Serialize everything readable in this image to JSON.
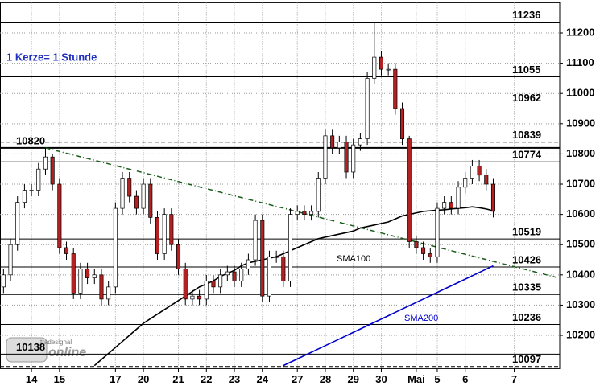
{
  "chart_data": {
    "type": "candlestick",
    "annotation": "1 Kerze= 1 Stunde",
    "logo": [
      "tradesignal",
      "online"
    ],
    "xlim": [
      -0.5,
      79.5
    ],
    "ylim": [
      10090,
      11300
    ],
    "grid": true,
    "up_color": "#ffffff",
    "down_color": "#b22222",
    "xticks": [
      {
        "value": 4,
        "label": "14"
      },
      {
        "value": 8,
        "label": "15"
      },
      {
        "value": 16,
        "label": "17"
      },
      {
        "value": 20,
        "label": "20"
      },
      {
        "value": 25,
        "label": "21"
      },
      {
        "value": 29,
        "label": "22"
      },
      {
        "value": 33,
        "label": "23"
      },
      {
        "value": 37,
        "label": "24"
      },
      {
        "value": 42,
        "label": "27"
      },
      {
        "value": 46,
        "label": "28"
      },
      {
        "value": 50,
        "label": "29"
      },
      {
        "value": 54,
        "label": "30"
      },
      {
        "value": 59,
        "label": "Mai"
      },
      {
        "value": 62,
        "label": "5"
      },
      {
        "value": 66,
        "label": "6"
      },
      {
        "value": 73,
        "label": "7"
      }
    ],
    "yticks": [
      10200,
      10300,
      10400,
      10500,
      10600,
      10700,
      10800,
      10900,
      11000,
      11100,
      11200
    ],
    "open": [
      10360,
      10400,
      10500,
      10640,
      10680,
      10680,
      10750,
      10790,
      10700,
      10490,
      10470,
      10340,
      10420,
      10390,
      10400,
      10320,
      10360,
      10620,
      10720,
      10660,
      10620,
      10700,
      10590,
      10470,
      10600,
      10500,
      10420,
      10320,
      10330,
      10320,
      10380,
      10360,
      10400,
      10410,
      10380,
      10420,
      10450,
      10580,
      10330,
      10460,
      10460,
      10380,
      10600,
      10610,
      10600,
      10610,
      10720,
      10860,
      10820,
      10840,
      10740,
      10830,
      10850,
      11050,
      11120,
      11080,
      11080,
      10950,
      10850,
      10510,
      10490,
      10470,
      10460,
      10620,
      10640,
      10620,
      10690,
      10720,
      10760,
      10730,
      10700
    ],
    "high": [
      10420,
      10520,
      10660,
      10700,
      10700,
      10770,
      10820,
      10800,
      10720,
      10510,
      10490,
      10440,
      10440,
      10420,
      10420,
      10380,
      10640,
      10740,
      10740,
      10680,
      10720,
      10720,
      10610,
      10620,
      10620,
      10520,
      10440,
      10350,
      10350,
      10400,
      10400,
      10420,
      10430,
      10430,
      10440,
      10470,
      10600,
      10600,
      10480,
      10480,
      10480,
      10620,
      10630,
      10630,
      10630,
      10740,
      10880,
      10880,
      10860,
      10860,
      10850,
      10870,
      11070,
      11236,
      11140,
      11100,
      11100,
      10970,
      10860,
      10530,
      10510,
      10490,
      10640,
      10660,
      10660,
      10710,
      10740,
      10780,
      10780,
      10750,
      10720
    ],
    "low": [
      10340,
      10380,
      10480,
      10620,
      10660,
      10660,
      10730,
      10680,
      10470,
      10450,
      10320,
      10320,
      10370,
      10370,
      10300,
      10300,
      10340,
      10600,
      10640,
      10600,
      10600,
      10570,
      10450,
      10450,
      10480,
      10400,
      10300,
      10300,
      10300,
      10300,
      10340,
      10340,
      10380,
      10360,
      10360,
      10400,
      10430,
      10310,
      10310,
      10440,
      10360,
      10360,
      10580,
      10580,
      10580,
      10590,
      10700,
      10800,
      10800,
      10720,
      10720,
      10810,
      10830,
      11030,
      11060,
      11060,
      10930,
      10830,
      10490,
      10470,
      10450,
      10440,
      10440,
      10600,
      10600,
      10600,
      10670,
      10700,
      10710,
      10680,
      10590
    ],
    "close": [
      10400,
      10500,
      10640,
      10680,
      10680,
      10750,
      10790,
      10700,
      10490,
      10470,
      10340,
      10420,
      10390,
      10400,
      10320,
      10360,
      10620,
      10720,
      10660,
      10620,
      10700,
      10590,
      10470,
      10600,
      10500,
      10420,
      10320,
      10330,
      10320,
      10380,
      10360,
      10400,
      10410,
      10380,
      10420,
      10450,
      10580,
      10330,
      10460,
      10460,
      10380,
      10600,
      10610,
      10600,
      10610,
      10720,
      10860,
      10820,
      10840,
      10740,
      10830,
      10850,
      11050,
      11120,
      11080,
      11080,
      10950,
      10850,
      10510,
      10490,
      10470,
      10460,
      10620,
      10640,
      10620,
      10690,
      10720,
      10760,
      10730,
      10700,
      10610
    ],
    "lines": [
      {
        "name": "SMA100",
        "color": "#000000",
        "values": [
          null,
          null,
          null,
          null,
          null,
          null,
          null,
          null,
          null,
          null,
          null,
          null,
          null,
          10100,
          10120,
          10140,
          10160,
          10180,
          10200,
          10220,
          10240,
          10255,
          10270,
          10285,
          10300,
          10315,
          10330,
          10345,
          10360,
          10370,
          10380,
          10395,
          10405,
          10415,
          10430,
          10440,
          10445,
          10450,
          10455,
          10460,
          10470,
          10480,
          10490,
          10500,
          10510,
          10520,
          10525,
          10530,
          10535,
          10540,
          10545,
          10555,
          10560,
          10565,
          10570,
          10575,
          10585,
          10595,
          10600,
          10605,
          10610,
          10612,
          10614,
          10615,
          10618,
          10620,
          10622,
          10625,
          10622,
          10618,
          10612
        ]
      },
      {
        "name": "SMA200",
        "color": "#0000cc",
        "values": [
          null,
          null,
          null,
          null,
          null,
          null,
          null,
          null,
          null,
          null,
          null,
          null,
          null,
          null,
          null,
          null,
          null,
          null,
          null,
          null,
          null,
          null,
          null,
          null,
          null,
          null,
          null,
          null,
          null,
          null,
          null,
          null,
          null,
          null,
          null,
          null,
          null,
          null,
          null,
          null,
          10100,
          10111,
          10122,
          10133,
          10144,
          10155,
          10166,
          10177,
          10188,
          10199,
          10210,
          10221,
          10232,
          10243,
          10254,
          10265,
          10276,
          10287,
          10298,
          10309,
          10320,
          10331,
          10342,
          10353,
          10364,
          10375,
          10386,
          10397,
          10408,
          10419,
          10430
        ]
      }
    ],
    "trendline": {
      "color": "#1a5c1a",
      "x": [
        6,
        79
      ],
      "values": [
        10820,
        10392
      ]
    },
    "levels": [
      {
        "value": 11236,
        "style": "solid",
        "label_side": "right"
      },
      {
        "value": 11055,
        "style": "solid",
        "label_side": "right"
      },
      {
        "value": 10962,
        "style": "solid",
        "label_side": "right"
      },
      {
        "value": 10839,
        "style": "dashed",
        "label_side": "right"
      },
      {
        "value": 10820,
        "style": "thick",
        "label_side": "left"
      },
      {
        "value": 10774,
        "style": "solid",
        "label_side": "right"
      },
      {
        "value": 10519,
        "style": "solid",
        "label_side": "right"
      },
      {
        "value": 10426,
        "style": "solid",
        "label_side": "right"
      },
      {
        "value": 10335,
        "style": "solid",
        "label_side": "right"
      },
      {
        "value": 10236,
        "style": "solid",
        "label_side": "right"
      },
      {
        "value": 10138,
        "style": "solid",
        "label_side": "left"
      },
      {
        "value": 10097,
        "style": "dashed",
        "label_side": "right"
      }
    ]
  }
}
